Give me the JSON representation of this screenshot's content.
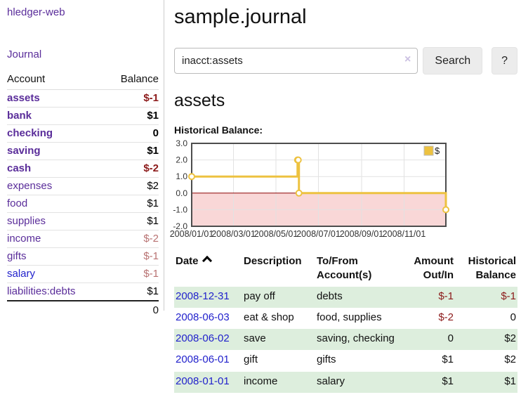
{
  "app": {
    "brand": "hledger-web",
    "nav_journal": "Journal"
  },
  "sidebar": {
    "headers": {
      "account": "Account",
      "balance": "Balance"
    },
    "rows": [
      {
        "account": "assets",
        "balance": "$-1",
        "level": 1,
        "bold": true,
        "balance_style": "neg"
      },
      {
        "account": "bank",
        "balance": "$1",
        "level": 2,
        "bold": true,
        "balance_style": ""
      },
      {
        "account": "checking",
        "balance": "0",
        "level": 3,
        "bold": true,
        "balance_style": ""
      },
      {
        "account": "saving",
        "balance": "$1",
        "level": 3,
        "bold": true,
        "balance_style": ""
      },
      {
        "account": "cash",
        "balance": "$-2",
        "level": 2,
        "bold": true,
        "balance_style": "neg"
      },
      {
        "account": "expenses",
        "balance": "$2",
        "level": 1,
        "bold": false,
        "balance_style": ""
      },
      {
        "account": "food",
        "balance": "$1",
        "level": 2,
        "bold": false,
        "balance_style": ""
      },
      {
        "account": "supplies",
        "balance": "$1",
        "level": 2,
        "bold": false,
        "balance_style": ""
      },
      {
        "account": "income",
        "balance": "$-2",
        "level": 1,
        "bold": false,
        "balance_style": "negm"
      },
      {
        "account": "gifts",
        "balance": "$-1",
        "level": 2,
        "bold": false,
        "balance_style": "negm"
      },
      {
        "account": "salary",
        "balance": "$-1",
        "level": 2,
        "bold": false,
        "balance_style": "negm",
        "blue": true
      },
      {
        "account": "liabilities:debts",
        "balance": "$1",
        "level": 1,
        "bold": false,
        "balance_style": ""
      }
    ],
    "total": "0"
  },
  "header": {
    "title": "sample.journal"
  },
  "search": {
    "value": "inacct:assets",
    "clear_icon": "×",
    "button": "Search",
    "help_button": "?"
  },
  "account_page": {
    "heading": "assets",
    "chart_label": "Historical Balance:"
  },
  "chart_data": {
    "type": "line",
    "step": true,
    "title": "Historical Balance:",
    "series": [
      {
        "name": "$",
        "color": "#edc240",
        "points": [
          [
            "2008-01-01",
            1
          ],
          [
            "2008-06-01",
            2
          ],
          [
            "2008-06-02",
            2
          ],
          [
            "2008-06-03",
            0
          ],
          [
            "2008-12-31",
            -1
          ]
        ]
      }
    ],
    "xrange": [
      "2008-01-01",
      "2008-12-31"
    ],
    "ylim": [
      -2,
      3
    ],
    "yticks": [
      {
        "v": 3,
        "label": "3.0"
      },
      {
        "v": 2,
        "label": "2.0"
      },
      {
        "v": 1,
        "label": "1.0"
      },
      {
        "v": 0,
        "label": "0.0"
      },
      {
        "v": -1,
        "label": "-1.0"
      },
      {
        "v": -2,
        "label": "-2.0"
      }
    ],
    "xticks": [
      {
        "d": "2008-01-01",
        "label": "2008/01/01",
        "grid": false
      },
      {
        "d": "2008-03-01",
        "label": "2008/03/01",
        "grid": true
      },
      {
        "d": "2008-05-01",
        "label": "2008/05/01",
        "grid": true
      },
      {
        "d": "2008-07-01",
        "label": "2008/07/01",
        "grid": true
      },
      {
        "d": "2008-09-01",
        "label": "2008/09/01",
        "grid": true
      },
      {
        "d": "2008-11-01",
        "label": "2008/11/01",
        "grid": true
      }
    ],
    "legend_position": "top-right",
    "grid_on": true,
    "negative_region_color": "#f9d7d7",
    "zero_line_color": "#8b0000",
    "grid_color": "#e2e2e2",
    "border_color": "#4d4d4d"
  },
  "register": {
    "columns": [
      "Date",
      "Description",
      "To/From Account(s)",
      "Amount Out/In",
      "Historical Balance"
    ],
    "rows": [
      {
        "date": "2008-12-31",
        "description": "pay off",
        "accounts": "debts",
        "amount": "$-1",
        "balance": "$-1",
        "amount_neg": true,
        "balance_neg": true
      },
      {
        "date": "2008-06-03",
        "description": "eat & shop",
        "accounts": "food, supplies",
        "amount": "$-2",
        "balance": "0",
        "amount_neg": true,
        "balance_neg": false
      },
      {
        "date": "2008-06-02",
        "description": "save",
        "accounts": "saving, checking",
        "amount": "0",
        "balance": "$2",
        "amount_neg": false,
        "balance_neg": false
      },
      {
        "date": "2008-06-01",
        "description": "gift",
        "accounts": "gifts",
        "amount": "$1",
        "balance": "$2",
        "amount_neg": false,
        "balance_neg": false
      },
      {
        "date": "2008-01-01",
        "description": "income",
        "accounts": "salary",
        "amount": "$1",
        "balance": "$1",
        "amount_neg": false,
        "balance_neg": false
      }
    ]
  }
}
